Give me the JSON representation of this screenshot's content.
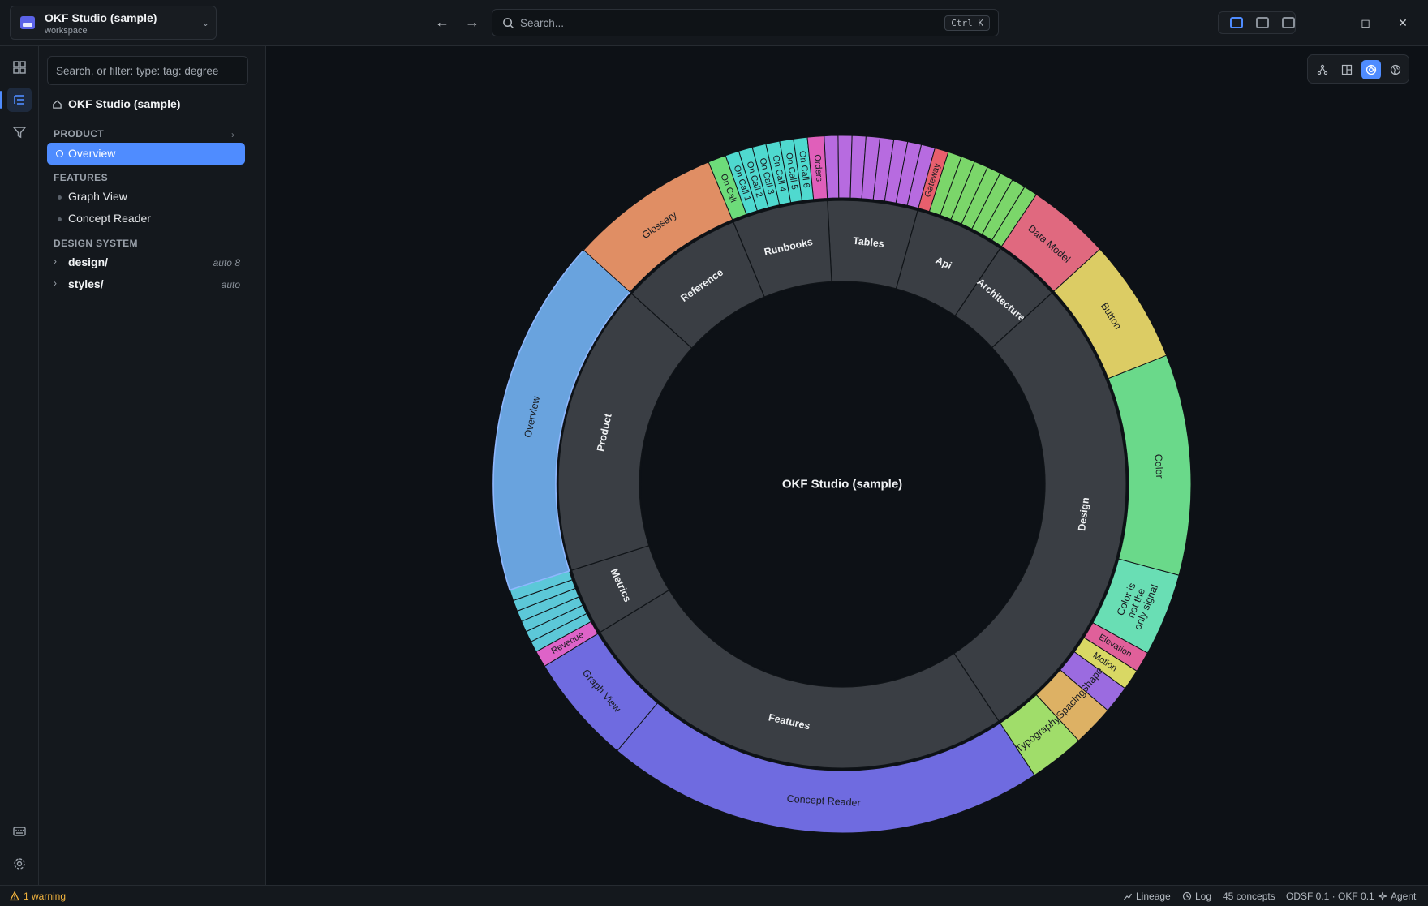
{
  "workspace": {
    "name": "OKF Studio (sample)",
    "subtitle": "workspace"
  },
  "toolbar": {
    "search_placeholder": "Search...",
    "shortcut": "Ctrl K"
  },
  "sidebar": {
    "filter_placeholder": "Search, or filter: type: tag: degree",
    "root_label": "OKF Studio (sample)",
    "sections": {
      "product": "PRODUCT",
      "features": "FEATURES",
      "design_system": "DESIGN SYSTEM"
    },
    "product_items": [
      {
        "label": "Overview",
        "active": true
      }
    ],
    "feature_items": [
      {
        "label": "Graph View"
      },
      {
        "label": "Concept Reader"
      }
    ],
    "folders": [
      {
        "label": "design/",
        "meta": "auto 8"
      },
      {
        "label": "styles/",
        "meta": "auto"
      }
    ]
  },
  "statusbar": {
    "warning": "1 warning",
    "lineage": "Lineage",
    "log": "Log",
    "concepts": "45 concepts",
    "version": "ODSF 0.1 · OKF 0.1",
    "agent": "Agent"
  },
  "chart_data": {
    "type": "sunburst",
    "center_label": "OKF Studio (sample)",
    "groups": [
      {
        "name": "Tables",
        "color": "#b76be0",
        "children": [
          {
            "name": "",
            "value": 1
          },
          {
            "name": "",
            "value": 1
          },
          {
            "name": "",
            "value": 1
          },
          {
            "name": "",
            "value": 1
          },
          {
            "name": "",
            "value": 1
          },
          {
            "name": "",
            "value": 1
          },
          {
            "name": "",
            "value": 1
          },
          {
            "name": "",
            "value": 1
          }
        ]
      },
      {
        "name": "Api",
        "color": "#e85f6d",
        "children": [
          {
            "name": "Gateway",
            "value": 1
          },
          {
            "name": "",
            "value": 1,
            "color": "#7bd66a"
          },
          {
            "name": "",
            "value": 1,
            "color": "#7bd66a"
          },
          {
            "name": "",
            "value": 1,
            "color": "#7bd66a"
          },
          {
            "name": "",
            "value": 1,
            "color": "#7bd66a"
          },
          {
            "name": "",
            "value": 1,
            "color": "#7bd66a"
          },
          {
            "name": "",
            "value": 1,
            "color": "#7bd66a"
          },
          {
            "name": "",
            "value": 1,
            "color": "#7bd66a"
          }
        ]
      },
      {
        "name": "Architecture",
        "color": "#e0697f",
        "children": [
          {
            "name": "Data Model",
            "value": 6
          }
        ]
      },
      {
        "name": "Design",
        "color": "#6fd88c",
        "children": [
          {
            "name": "Button",
            "value": 9,
            "color": "#dccc64"
          },
          {
            "name": "Color",
            "value": 16,
            "color": "#6ad98a"
          },
          {
            "name": "Color is not the only signal",
            "value": 6,
            "color": "#69deb4"
          },
          {
            "name": "Elevation",
            "value": 1.5,
            "color": "#e0609a"
          },
          {
            "name": "Motion",
            "value": 1.5,
            "color": "#d9d864"
          },
          {
            "name": "Shape",
            "value": 2,
            "color": "#9b6be0"
          },
          {
            "name": "Spacing",
            "value": 3,
            "color": "#ddb164"
          },
          {
            "name": "Typography",
            "value": 4,
            "color": "#a0dd6a"
          }
        ]
      },
      {
        "name": "Features",
        "color": "#6f6be0",
        "children": [
          {
            "name": "Concept Reader",
            "value": 32
          },
          {
            "name": "Graph View",
            "value": 8
          }
        ]
      },
      {
        "name": "Metrics",
        "color": "#5cc8d8",
        "children": [
          {
            "name": "Revenue",
            "value": 1.2,
            "color": "#de63c8"
          },
          {
            "name": "",
            "value": 0.8
          },
          {
            "name": "",
            "value": 0.8
          },
          {
            "name": "",
            "value": 0.8
          },
          {
            "name": "",
            "value": 0.8
          },
          {
            "name": "",
            "value": 0.8
          },
          {
            "name": "",
            "value": 0.8
          }
        ]
      },
      {
        "name": "Product",
        "color": "#69a3de",
        "children": [
          {
            "name": "Overview",
            "value": 26,
            "highlight": true
          }
        ]
      },
      {
        "name": "Reference",
        "color": "#e08e64",
        "children": [
          {
            "name": "Glossary",
            "value": 11
          }
        ]
      },
      {
        "name": "Runbooks",
        "color": "#4fd9cf",
        "children": [
          {
            "name": "On Call",
            "value": 1.3,
            "color": "#6ddc7a"
          },
          {
            "name": "On Call 1",
            "value": 1
          },
          {
            "name": "On Call 2",
            "value": 1
          },
          {
            "name": "On Call 3",
            "value": 1
          },
          {
            "name": "On Call 4",
            "value": 1
          },
          {
            "name": "On Call 5",
            "value": 1
          },
          {
            "name": "On Call 6",
            "value": 1
          },
          {
            "name": "Orders",
            "value": 1.2,
            "color": "#e05fba"
          }
        ]
      }
    ]
  }
}
